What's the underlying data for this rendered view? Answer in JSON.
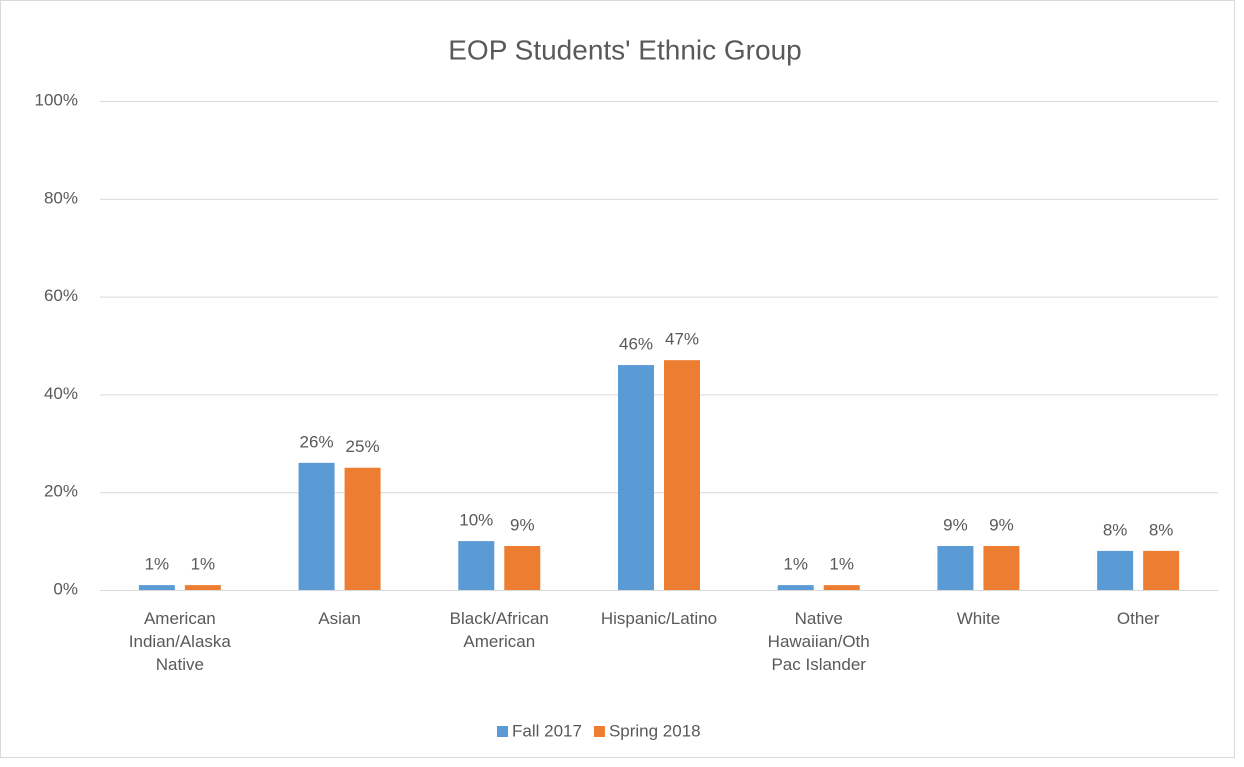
{
  "chart_data": {
    "type": "bar",
    "title": "EOP Students' Ethnic Group",
    "categories": [
      "American Indian/Alaska Native",
      "Asian",
      "Black/African American",
      "Hispanic/Latino",
      "Native Hawaiian/Oth Pac Islander",
      "White",
      "Other"
    ],
    "series": [
      {
        "name": "Fall 2017",
        "color": "#5b9bd5",
        "values": [
          1,
          26,
          10,
          46,
          1,
          9,
          8
        ],
        "value_labels": [
          "1%",
          "26%",
          "10%",
          "46%",
          "1%",
          "9%",
          "8%"
        ]
      },
      {
        "name": "Spring 2018",
        "color": "#ed7d31",
        "values": [
          1,
          25,
          9,
          47,
          1,
          9,
          8
        ],
        "value_labels": [
          "1%",
          "25%",
          "9%",
          "47%",
          "1%",
          "9%",
          "8%"
        ]
      }
    ],
    "ylim": [
      0,
      100
    ],
    "yticks": [
      {
        "value": 0,
        "label": "0%"
      },
      {
        "value": 20,
        "label": "20%"
      },
      {
        "value": 40,
        "label": "40%"
      },
      {
        "value": 60,
        "label": "60%"
      },
      {
        "value": 80,
        "label": "80%"
      },
      {
        "value": 100,
        "label": "100%"
      }
    ],
    "grid": true,
    "legend": "bottom"
  }
}
